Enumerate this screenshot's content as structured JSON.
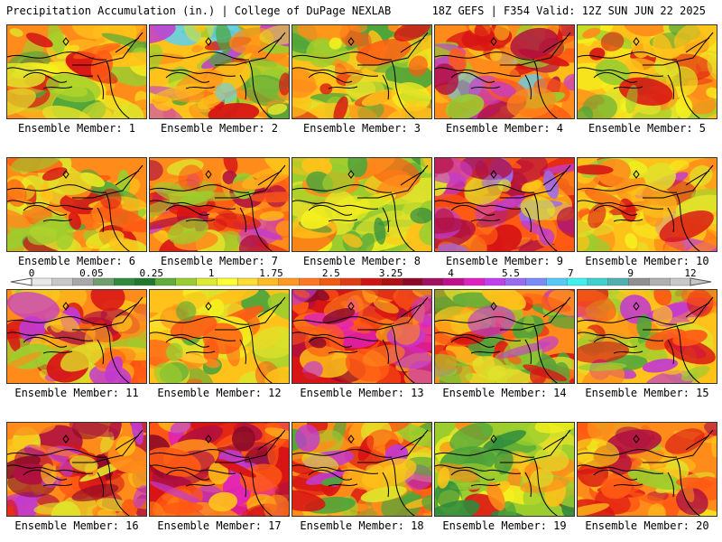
{
  "header": {
    "left": "Precipitation Accumulation (in.) | College of DuPage NEXLAB",
    "right": "18Z GEFS | F354 Valid: 12Z SUN JUN 22 2025"
  },
  "colorbar": {
    "tick_labels": [
      "0",
      "0.05",
      "0.25",
      "1",
      "1.75",
      "2.5",
      "3.25",
      "4",
      "5.5",
      "7",
      "9",
      "12"
    ],
    "colors": [
      "#e8e8e8",
      "#c8c8c8",
      "#a8a8a8",
      "#6f9f6f",
      "#2e8b3e",
      "#1f7a2e",
      "#5fae3a",
      "#9acd32",
      "#dcec32",
      "#ffff33",
      "#ffdd33",
      "#ffbb22",
      "#ff9922",
      "#ff7722",
      "#f05a14",
      "#e03c14",
      "#d01414",
      "#b01010",
      "#8b0a28",
      "#a01060",
      "#c01090",
      "#e020c0",
      "#c040f0",
      "#9a6af0",
      "#7a8af8",
      "#58c8f8",
      "#40f0f0",
      "#40d0d0",
      "#50b0b0",
      "#909090",
      "#b0b0b0",
      "#c8c8c8"
    ]
  },
  "members": [
    {
      "label": "Ensemble Member: 1",
      "palette": [
        "#ff8c1a",
        "#ffc21a",
        "#e0e22a",
        "#f5f01e",
        "#ff5a14",
        "#d81414",
        "#9ccd2e",
        "#4fa53a"
      ]
    },
    {
      "label": "Ensemble Member: 2",
      "palette": [
        "#ffc21a",
        "#ff8c1a",
        "#9ccd2e",
        "#4fa53a",
        "#e0e22a",
        "#d81414",
        "#c23ad0",
        "#5fd0f0"
      ]
    },
    {
      "label": "Ensemble Member: 3",
      "palette": [
        "#ffc21a",
        "#e0e22a",
        "#9ccd2e",
        "#4fa53a",
        "#ff8c1a",
        "#d81414",
        "#f5f01e",
        "#ff5a14"
      ]
    },
    {
      "label": "Ensemble Member: 4",
      "palette": [
        "#ff8c1a",
        "#ff5a14",
        "#d81414",
        "#ffc21a",
        "#b01040",
        "#c23ad0",
        "#9ccd2e",
        "#5fd0f0"
      ]
    },
    {
      "label": "Ensemble Member: 5",
      "palette": [
        "#ffc21a",
        "#f5f01e",
        "#e0e22a",
        "#ff8c1a",
        "#9ccd2e",
        "#4fa53a",
        "#ff5a14",
        "#d81414"
      ]
    },
    {
      "label": "Ensemble Member: 6",
      "palette": [
        "#ff8c1a",
        "#ffc21a",
        "#e0e22a",
        "#9ccd2e",
        "#ff5a14",
        "#d81414",
        "#4fa53a",
        "#f5f01e"
      ]
    },
    {
      "label": "Ensemble Member: 7",
      "palette": [
        "#ff8c1a",
        "#ff5a14",
        "#d81414",
        "#ffc21a",
        "#b01040",
        "#c23ad0",
        "#e0e22a",
        "#9ccd2e"
      ]
    },
    {
      "label": "Ensemble Member: 8",
      "palette": [
        "#9ccd2e",
        "#4fa53a",
        "#e0e22a",
        "#ffc21a",
        "#f5f01e",
        "#ff8c1a",
        "#2e8b3e",
        "#ff5a14"
      ]
    },
    {
      "label": "Ensemble Member: 9",
      "palette": [
        "#ff5a14",
        "#d81414",
        "#ff8c1a",
        "#b01040",
        "#c23ad0",
        "#ffc21a",
        "#9a6af0",
        "#e0e22a"
      ]
    },
    {
      "label": "Ensemble Member: 10",
      "palette": [
        "#ffc21a",
        "#f5f01e",
        "#e0e22a",
        "#ff8c1a",
        "#d81414",
        "#c23ad0",
        "#9ccd2e",
        "#ff5a14"
      ]
    },
    {
      "label": "Ensemble Member: 11",
      "palette": [
        "#ff8c1a",
        "#ffc21a",
        "#d81414",
        "#9ccd2e",
        "#c23ad0",
        "#ff5a14",
        "#e0e22a",
        "#b01040"
      ]
    },
    {
      "label": "Ensemble Member: 12",
      "palette": [
        "#ffc21a",
        "#f5f01e",
        "#e0e22a",
        "#ff8c1a",
        "#9ccd2e",
        "#4fa53a",
        "#ff5a14",
        "#ffdd33"
      ]
    },
    {
      "label": "Ensemble Member: 13",
      "palette": [
        "#d81414",
        "#ff5a14",
        "#b01040",
        "#ff8c1a",
        "#c23ad0",
        "#ffc21a",
        "#8b0a28",
        "#e020c0"
      ]
    },
    {
      "label": "Ensemble Member: 14",
      "palette": [
        "#ff8c1a",
        "#d81414",
        "#9ccd2e",
        "#4fa53a",
        "#ffc21a",
        "#ff5a14",
        "#c23ad0",
        "#e0e22a"
      ]
    },
    {
      "label": "Ensemble Member: 15",
      "palette": [
        "#ffc21a",
        "#ff8c1a",
        "#9ccd2e",
        "#e0e22a",
        "#d81414",
        "#c23ad0",
        "#ff5a14",
        "#4fa53a"
      ]
    },
    {
      "label": "Ensemble Member: 16",
      "palette": [
        "#ff8c1a",
        "#d81414",
        "#ff5a14",
        "#b01040",
        "#ffc21a",
        "#c23ad0",
        "#8b0a28",
        "#e0e22a"
      ]
    },
    {
      "label": "Ensemble Member: 17",
      "palette": [
        "#d81414",
        "#ff5a14",
        "#ff8c1a",
        "#b01040",
        "#ffc21a",
        "#c23ad0",
        "#e020c0",
        "#8b0a28"
      ]
    },
    {
      "label": "Ensemble Member: 18",
      "palette": [
        "#ff8c1a",
        "#ffc21a",
        "#d81414",
        "#ff5a14",
        "#9ccd2e",
        "#e0e22a",
        "#c23ad0",
        "#4fa53a"
      ]
    },
    {
      "label": "Ensemble Member: 19",
      "palette": [
        "#9ccd2e",
        "#e0e22a",
        "#4fa53a",
        "#ffc21a",
        "#ff8c1a",
        "#f5f01e",
        "#d81414",
        "#2e8b3e"
      ]
    },
    {
      "label": "Ensemble Member: 20",
      "palette": [
        "#ff8c1a",
        "#ffc21a",
        "#ff5a14",
        "#d81414",
        "#e0e22a",
        "#9ccd2e",
        "#b01040",
        "#f5f01e"
      ]
    }
  ]
}
